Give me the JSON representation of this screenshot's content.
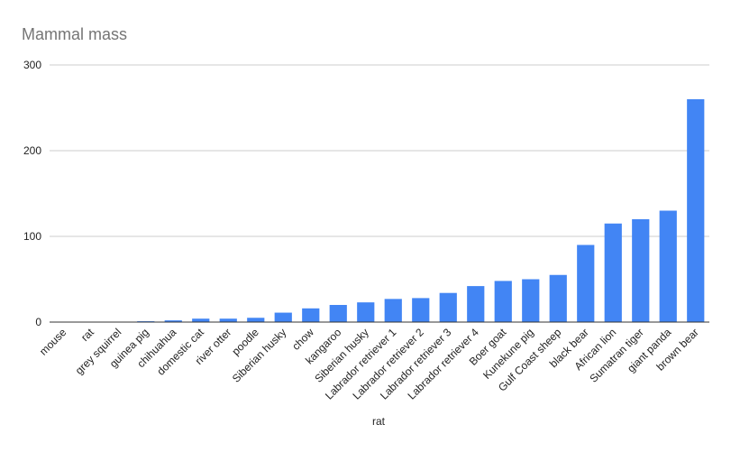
{
  "chart_data": {
    "type": "bar",
    "title": "Mammal mass",
    "xlabel": "rat",
    "ylabel": "",
    "ylim": [
      0,
      300
    ],
    "yticks": [
      0,
      100,
      200,
      300
    ],
    "grid": true,
    "legend": "none",
    "bar_color": "#4285f4",
    "categories": [
      "mouse",
      "rat",
      "grey squirrel",
      "guinea pig",
      "chihuahua",
      "domestic cat",
      "river otter",
      "poodle",
      "Siberian husky",
      "chow",
      "kangaroo",
      "Siberian husky",
      "Labrador retriever 1",
      "Labrador retriever 2",
      "Labrador retriever 3",
      "Labrador retriever 4",
      "Boer goat",
      "Kunekune pig",
      "Gulf Coast sheep",
      "black bear",
      "African lion",
      "Sumatran tiger",
      "giant panda",
      "brown bear"
    ],
    "values": [
      0.02,
      0.3,
      0.5,
      1,
      2,
      4,
      4,
      5,
      11,
      16,
      20,
      23,
      27,
      28,
      34,
      42,
      48,
      50,
      55,
      90,
      115,
      120,
      130,
      260
    ]
  }
}
